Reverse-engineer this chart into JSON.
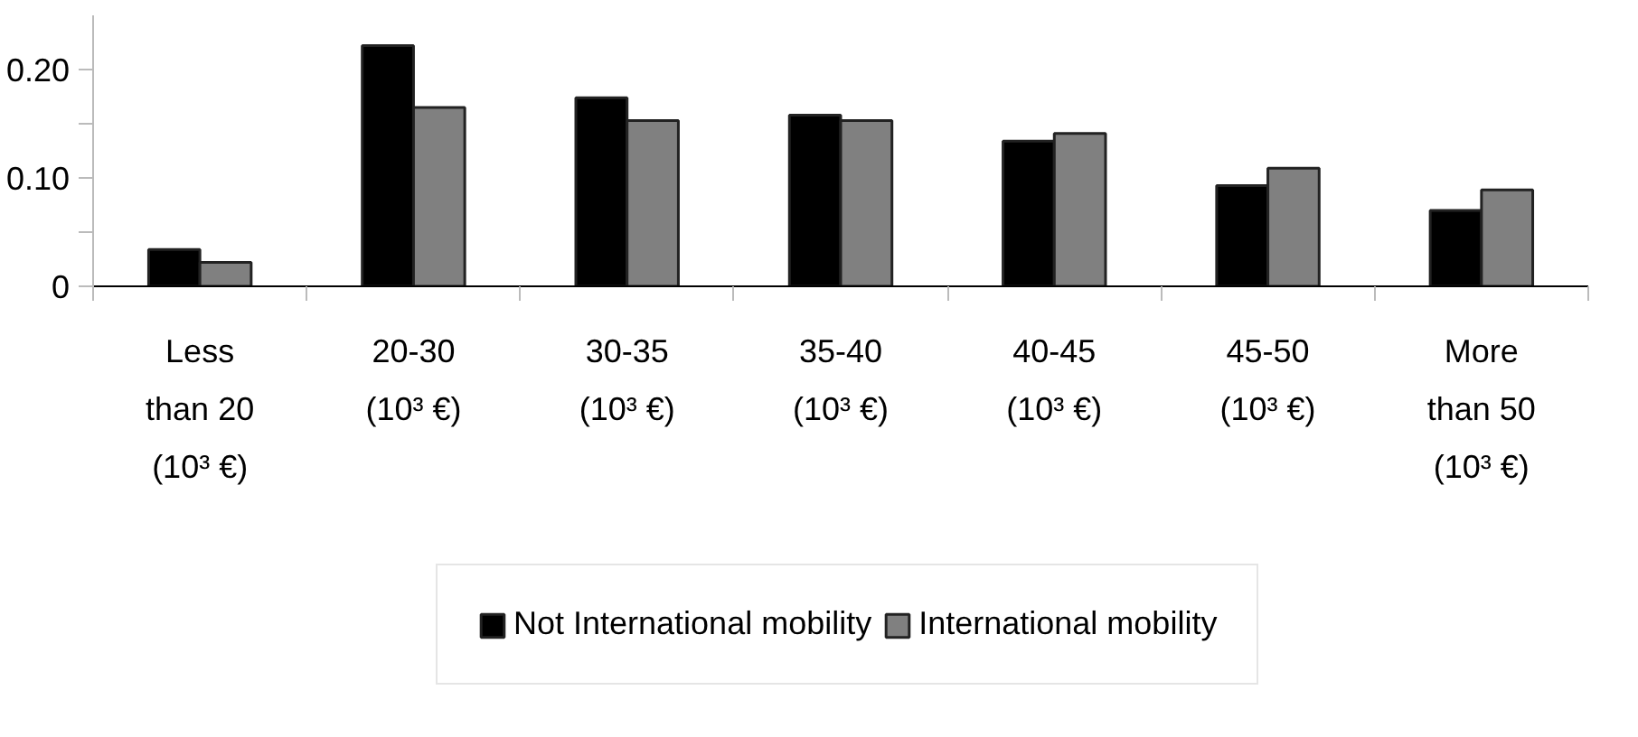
{
  "chart_data": {
    "type": "bar",
    "categories": [
      "Less\nthan 20\n(10³ €)",
      "20-30\n(10³ €)",
      "30-35\n(10³ €)",
      "35-40\n(10³ €)",
      "40-45\n(10³ €)",
      "45-50\n(10³ €)",
      "More\nthan 50\n(10³ €)"
    ],
    "series": [
      {
        "name": "Not International mobility",
        "color": "#000000",
        "values": [
          0.034,
          0.222,
          0.174,
          0.158,
          0.134,
          0.093,
          0.07
        ]
      },
      {
        "name": "International mobility",
        "color": "#808080",
        "values": [
          0.022,
          0.165,
          0.153,
          0.153,
          0.141,
          0.109,
          0.089
        ]
      }
    ],
    "ylim": [
      0,
      0.25
    ],
    "yticks": [
      0,
      {
        "value": 0.05,
        "label": null
      },
      {
        "value": 0.1,
        "label": "0.10"
      },
      {
        "value": 0.15,
        "label": null
      },
      {
        "value": 0.2,
        "label": "0.20"
      }
    ],
    "grid": false,
    "legend": "bottom"
  }
}
